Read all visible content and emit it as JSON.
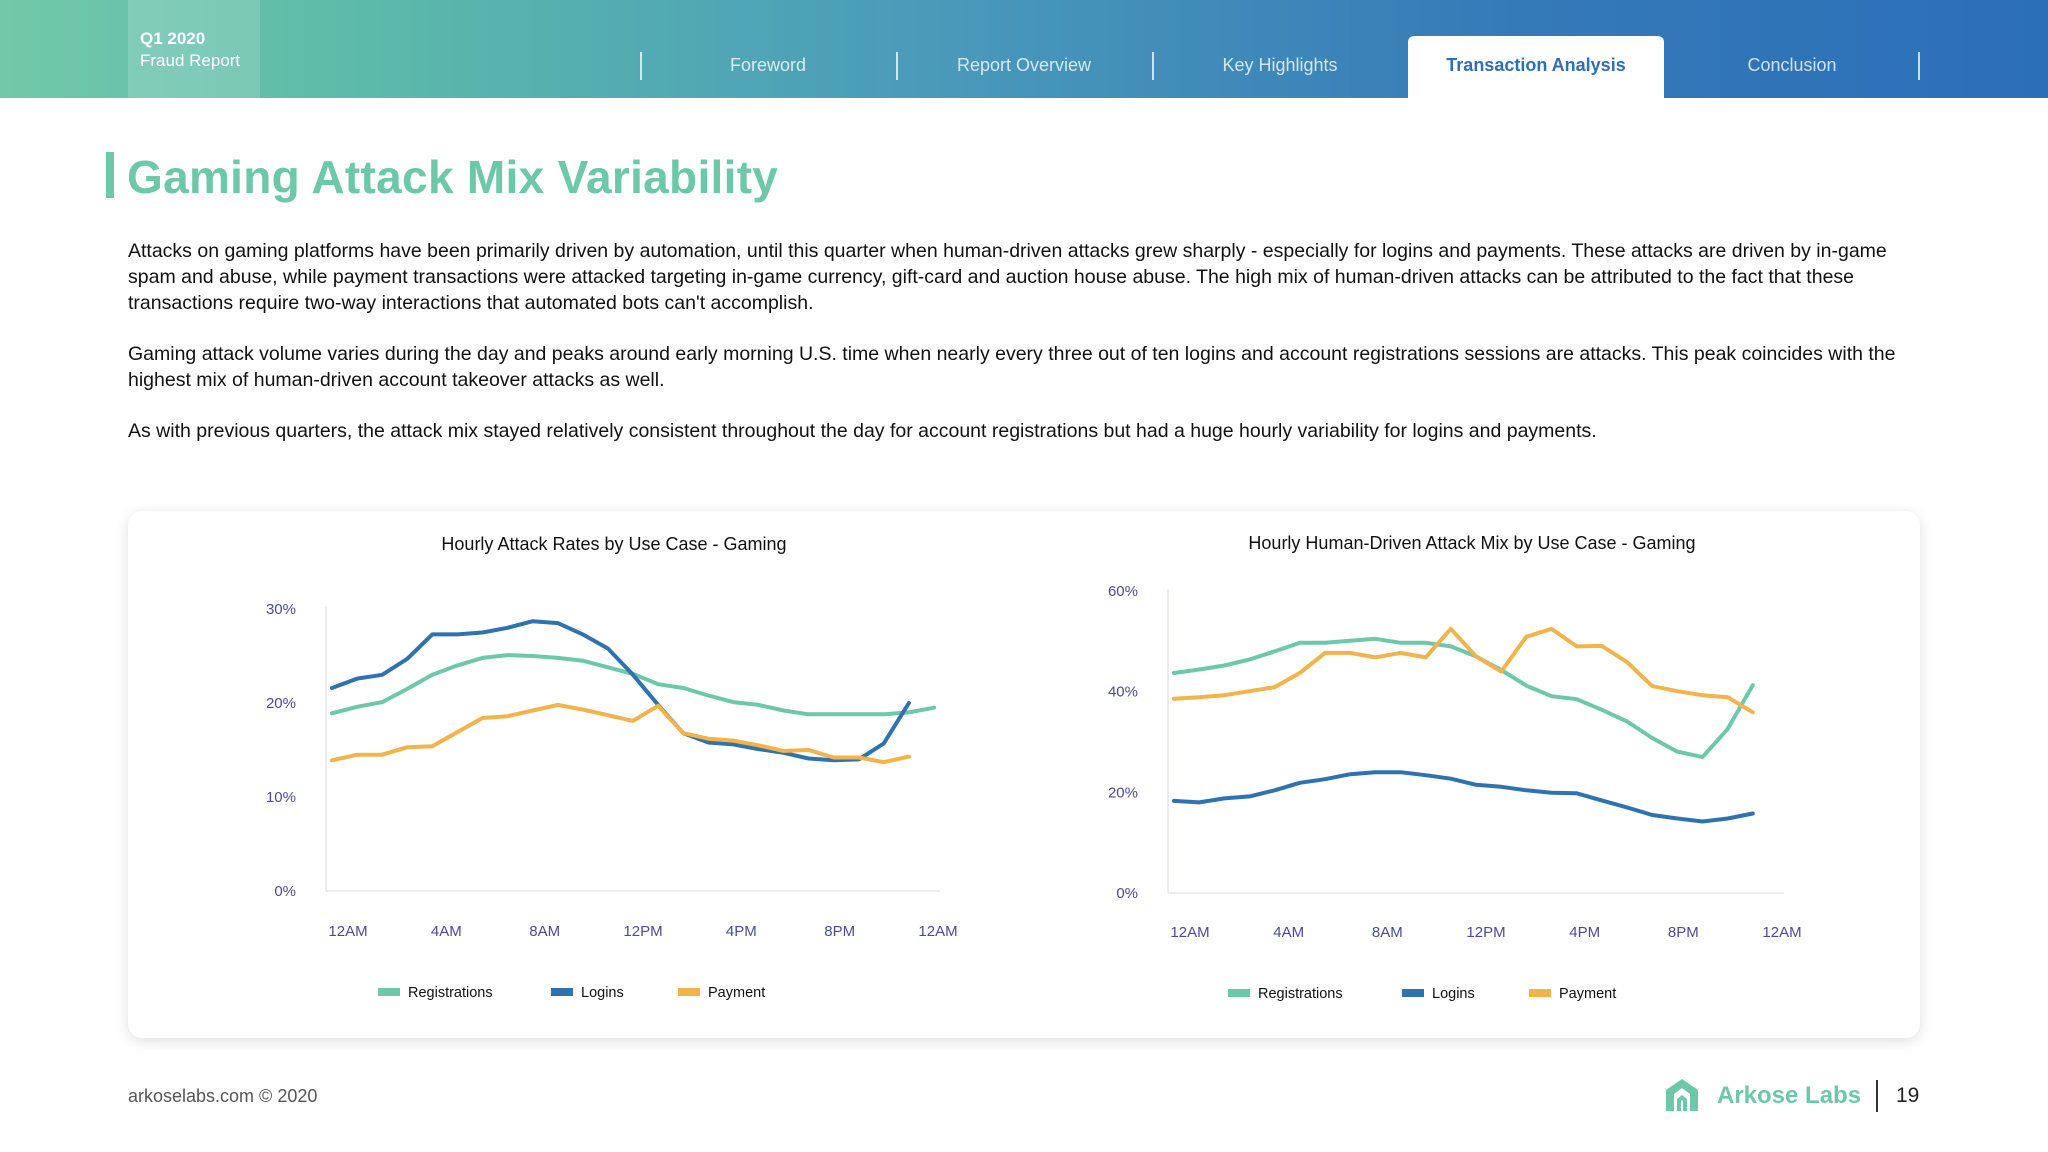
{
  "header": {
    "badge_line1": "Q1 2020",
    "badge_line2": "Fraud Report",
    "tabs": [
      {
        "label": "Foreword"
      },
      {
        "label": "Report Overview"
      },
      {
        "label": "Key Highlights"
      },
      {
        "label": "Transaction Analysis"
      },
      {
        "label": "Conclusion"
      }
    ],
    "active_tab": "Transaction Analysis"
  },
  "page": {
    "title": "Gaming Attack Mix Variability",
    "paragraphs": [
      "Attacks on gaming platforms have been primarily driven by automation, until this quarter when human-driven attacks grew sharply - especially for logins and payments. These attacks are driven by in-game spam and abuse, while payment transactions were attacked targeting in-game currency, gift-card and auction house abuse. The high mix of human-driven attacks can be attributed to the fact that these transactions require two-way interactions that automated bots can't accomplish.",
      "Gaming attack volume varies during the day and peaks around early morning U.S. time when nearly every three out of ten logins and account registrations sessions are attacks. This peak coincides with the highest mix of human-driven account takeover attacks as well.",
      "As with previous quarters, the attack mix stayed relatively consistent throughout the day for account registrations but had a huge hourly variability for logins and payments."
    ]
  },
  "colors": {
    "registrations": "#6cc8a8",
    "logins": "#2f72b0",
    "payment": "#f1b34a",
    "axis_text": "#4a4a9a"
  },
  "chart_data": [
    {
      "type": "line",
      "title": "Hourly Attack Rates by Use Case - Gaming",
      "x": [
        0,
        1,
        2,
        3,
        4,
        5,
        6,
        7,
        8,
        9,
        10,
        11,
        12,
        13,
        14,
        15,
        16,
        17,
        18,
        19,
        20,
        21,
        22,
        23,
        24
      ],
      "x_tick_positions": [
        0,
        4,
        8,
        12,
        16,
        20,
        24
      ],
      "x_tick_labels": [
        "12AM",
        "4AM",
        "8AM",
        "12PM",
        "4PM",
        "8PM",
        "12AM"
      ],
      "ylim": [
        0,
        30
      ],
      "y_ticks": [
        0,
        10,
        20,
        30
      ],
      "y_tick_labels": [
        "0%",
        "10%",
        "20%",
        "30%"
      ],
      "series": [
        {
          "name": "Registrations",
          "key": "registrations",
          "values": [
            18.9,
            19.6,
            20.1,
            21.5,
            23.0,
            24.0,
            24.8,
            25.1,
            25.0,
            24.8,
            24.5,
            23.8,
            23.1,
            22.0,
            21.6,
            20.8,
            20.1,
            19.8,
            19.2,
            18.8,
            18.8,
            18.8,
            18.8,
            19.0,
            19.5
          ]
        },
        {
          "name": "Logins",
          "key": "logins",
          "values": [
            21.6,
            22.6,
            23.0,
            24.7,
            27.3,
            27.3,
            27.5,
            28.0,
            28.7,
            28.5,
            27.3,
            25.8,
            23.0,
            19.8,
            16.8,
            15.8,
            15.6,
            15.1,
            14.7,
            14.1,
            13.9,
            14.0,
            15.7,
            20.0,
            null
          ]
        },
        {
          "name": "Payment",
          "key": "payment",
          "values": [
            13.9,
            14.5,
            14.5,
            15.3,
            15.4,
            16.9,
            18.4,
            18.6,
            19.2,
            19.8,
            19.3,
            18.7,
            18.1,
            19.7,
            16.8,
            16.2,
            16.0,
            15.5,
            14.9,
            15.0,
            14.2,
            14.2,
            13.7,
            14.3,
            null
          ]
        }
      ],
      "legend": [
        "Registrations",
        "Logins",
        "Payment"
      ]
    },
    {
      "type": "line",
      "title": "Hourly Human-Driven Attack Mix by Use Case - Gaming",
      "x": [
        0,
        1,
        2,
        3,
        4,
        5,
        6,
        7,
        8,
        9,
        10,
        11,
        12,
        13,
        14,
        15,
        16,
        17,
        18,
        19,
        20,
        21,
        22,
        23,
        24
      ],
      "x_tick_positions": [
        0,
        4,
        8,
        12,
        16,
        20,
        24
      ],
      "x_tick_labels": [
        "12AM",
        "4AM",
        "8AM",
        "12PM",
        "4PM",
        "8PM",
        "12AM"
      ],
      "ylim": [
        0,
        60
      ],
      "y_ticks": [
        0,
        20,
        40,
        60
      ],
      "y_tick_labels": [
        "0%",
        "20%",
        "40%",
        "60%"
      ],
      "series": [
        {
          "name": "Registrations",
          "key": "registrations",
          "values": [
            43.7,
            44.4,
            45.2,
            46.4,
            48.0,
            49.7,
            49.7,
            50.1,
            50.5,
            49.7,
            49.7,
            49.0,
            47.0,
            44.3,
            41.2,
            39.1,
            38.5,
            36.4,
            34.1,
            30.8,
            28.1,
            27.0,
            32.6,
            41.3,
            null
          ]
        },
        {
          "name": "Logins",
          "key": "logins",
          "values": [
            18.3,
            18.0,
            18.8,
            19.2,
            20.4,
            21.9,
            22.6,
            23.6,
            24.0,
            24.0,
            23.4,
            22.7,
            21.5,
            21.1,
            20.4,
            19.9,
            19.8,
            18.4,
            17.0,
            15.5,
            14.8,
            14.2,
            14.8,
            15.8,
            null
          ]
        },
        {
          "name": "Payment",
          "key": "payment",
          "values": [
            38.6,
            38.9,
            39.3,
            40.1,
            40.9,
            43.7,
            47.7,
            47.7,
            46.8,
            47.7,
            46.8,
            52.5,
            47.0,
            44.0,
            50.9,
            52.5,
            49.0,
            49.1,
            45.9,
            41.1,
            40.1,
            39.3,
            38.9,
            35.9,
            null
          ]
        }
      ],
      "legend": [
        "Registrations",
        "Logins",
        "Payment"
      ]
    }
  ],
  "footer": {
    "copyright": "arkoselabs.com © 2020",
    "logo_text": "Arkose Labs",
    "page_number": "19"
  }
}
